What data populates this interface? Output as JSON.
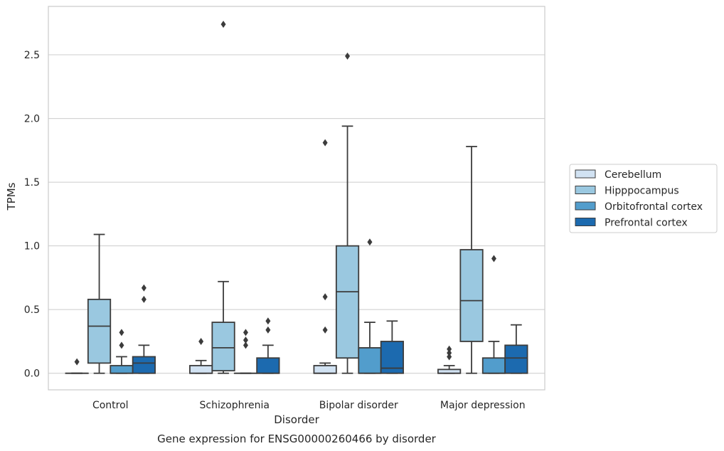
{
  "chart_data": {
    "type": "box",
    "caption": "Gene expression for ENSG00000260466 by disorder",
    "xlabel": "Disorder",
    "ylabel": "TPMs",
    "ylim": [
      -0.13,
      2.88
    ],
    "yticks": [
      "0.0",
      "0.5",
      "1.0",
      "1.5",
      "2.0",
      "2.5"
    ],
    "ytick_values": [
      0.0,
      0.5,
      1.0,
      1.5,
      2.0,
      2.5
    ],
    "categories": [
      "Control",
      "Schizophrenia",
      "Bipolar disorder",
      "Major depression"
    ],
    "grid": "horizontal",
    "legend_position": "right",
    "series": [
      {
        "name": "Cerebellum",
        "color": "#d1e2f2",
        "boxes": [
          {
            "whislo": 0.0,
            "q1": 0.0,
            "med": 0.0,
            "q3": 0.0,
            "whishi": 0.0,
            "fliers": [
              0.09
            ]
          },
          {
            "whislo": 0.0,
            "q1": 0.0,
            "med": 0.0,
            "q3": 0.06,
            "whishi": 0.1,
            "fliers": [
              0.25
            ]
          },
          {
            "whislo": 0.0,
            "q1": 0.0,
            "med": 0.0,
            "q3": 0.06,
            "whishi": 0.08,
            "fliers": [
              0.34,
              0.6,
              1.81
            ]
          },
          {
            "whislo": 0.0,
            "q1": 0.0,
            "med": 0.0,
            "q3": 0.03,
            "whishi": 0.06,
            "fliers": [
              0.13,
              0.16,
              0.19
            ]
          }
        ]
      },
      {
        "name": "Hipppocampus",
        "color": "#9ac8e0",
        "boxes": [
          {
            "whislo": 0.0,
            "q1": 0.08,
            "med": 0.37,
            "q3": 0.58,
            "whishi": 1.09,
            "fliers": []
          },
          {
            "whislo": 0.0,
            "q1": 0.02,
            "med": 0.2,
            "q3": 0.4,
            "whishi": 0.72,
            "fliers": [
              2.74
            ]
          },
          {
            "whislo": 0.0,
            "q1": 0.12,
            "med": 0.64,
            "q3": 1.0,
            "whishi": 1.94,
            "fliers": [
              2.49
            ]
          },
          {
            "whislo": 0.0,
            "q1": 0.25,
            "med": 0.57,
            "q3": 0.97,
            "whishi": 1.78,
            "fliers": []
          }
        ]
      },
      {
        "name": "Orbitofrontal cortex",
        "color": "#529dcc",
        "boxes": [
          {
            "whislo": 0.0,
            "q1": 0.0,
            "med": 0.0,
            "q3": 0.06,
            "whishi": 0.13,
            "fliers": [
              0.22,
              0.32
            ]
          },
          {
            "whislo": 0.0,
            "q1": 0.0,
            "med": 0.0,
            "q3": 0.0,
            "whishi": 0.0,
            "fliers": [
              0.22,
              0.26,
              0.32
            ]
          },
          {
            "whislo": 0.0,
            "q1": 0.0,
            "med": 0.0,
            "q3": 0.2,
            "whishi": 0.4,
            "fliers": [
              1.03
            ]
          },
          {
            "whislo": 0.0,
            "q1": 0.0,
            "med": 0.0,
            "q3": 0.12,
            "whishi": 0.25,
            "fliers": [
              0.9
            ]
          }
        ]
      },
      {
        "name": "Prefrontal cortex",
        "color": "#1c6aaf",
        "boxes": [
          {
            "whislo": 0.0,
            "q1": 0.0,
            "med": 0.08,
            "q3": 0.13,
            "whishi": 0.22,
            "fliers": [
              0.58,
              0.67
            ]
          },
          {
            "whislo": 0.0,
            "q1": 0.0,
            "med": 0.0,
            "q3": 0.12,
            "whishi": 0.22,
            "fliers": [
              0.34,
              0.41
            ]
          },
          {
            "whislo": 0.0,
            "q1": 0.0,
            "med": 0.04,
            "q3": 0.25,
            "whishi": 0.41,
            "fliers": []
          },
          {
            "whislo": 0.0,
            "q1": 0.0,
            "med": 0.12,
            "q3": 0.22,
            "whishi": 0.38,
            "fliers": []
          }
        ]
      }
    ]
  }
}
